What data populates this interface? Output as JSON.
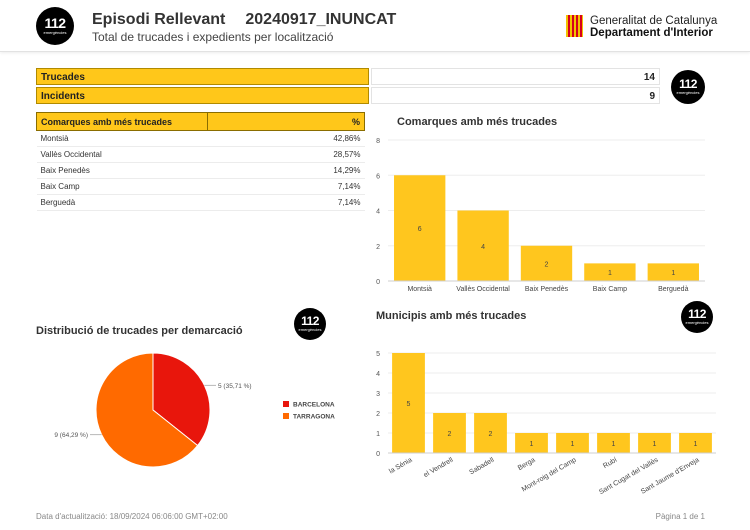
{
  "header": {
    "logo_number": "112",
    "logo_sub": "emergències",
    "title": "Episodi Rellevant",
    "episode_code": "20240917_INUNCAT",
    "subtitle": "Total de trucades i expedients per localització",
    "org_line1": "Generalitat de Catalunya",
    "org_line2": "Departament d'Interior"
  },
  "kpis": [
    {
      "label": "Trucades",
      "value": "14"
    },
    {
      "label": "Incidents",
      "value": "9"
    }
  ],
  "table": {
    "col_name": "Comarques amb més trucades",
    "col_pct": "%",
    "rows": [
      {
        "name": "Montsià",
        "pct": "42,86%"
      },
      {
        "name": "Vallès Occidental",
        "pct": "28,57%"
      },
      {
        "name": "Baix Penedès",
        "pct": "14,29%"
      },
      {
        "name": "Baix Camp",
        "pct": "7,14%"
      },
      {
        "name": "Berguedà",
        "pct": "7,14%"
      }
    ]
  },
  "chart_data": [
    {
      "type": "bar",
      "title": "Comarques amb més trucades",
      "categories": [
        "Montsià",
        "Vallès Occidental",
        "Baix Penedès",
        "Baix Camp",
        "Berguedà"
      ],
      "values": [
        6,
        4,
        2,
        1,
        1
      ],
      "ylim": [
        0,
        8
      ],
      "yticks": [
        0,
        2,
        4,
        6,
        8
      ],
      "color": "#ffc61e"
    },
    {
      "type": "pie",
      "title": "Distribució de trucades per demarcació",
      "labels": [
        "BARCELONA",
        "TARRAGONA"
      ],
      "values": [
        5,
        9
      ],
      "data_labels": [
        "5 (35,71 %)",
        "9 (64,29 %)"
      ],
      "colors": [
        "#e8160c",
        "#ff6a00"
      ],
      "legend": "right"
    },
    {
      "type": "bar",
      "title": "Municipis amb més trucades",
      "categories": [
        "la Sénia",
        "el Vendrell",
        "Sabadell",
        "Berga",
        "Mont-roig del Camp",
        "Rubí",
        "Sant Cugat del Vallès",
        "Sant Jaume d'Enveja"
      ],
      "values": [
        5,
        2,
        2,
        1,
        1,
        1,
        1,
        1
      ],
      "ylim": [
        0,
        5
      ],
      "yticks": [
        0,
        1,
        2,
        3,
        4,
        5
      ],
      "color": "#ffc61e"
    }
  ],
  "footer": {
    "updated": "Data d'actualització: 18/09/2024   06:06:00 GMT+02:00",
    "page": "Pàgina 1 de 1"
  }
}
